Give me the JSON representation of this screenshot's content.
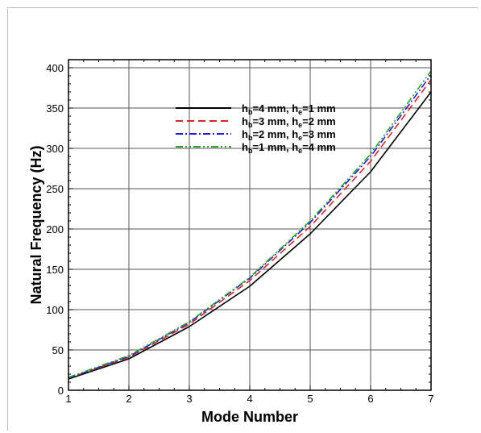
{
  "chart_data": {
    "type": "line",
    "xlabel": "Mode Number",
    "ylabel": "Natural Frequency (Hz)",
    "xlim": [
      1,
      7
    ],
    "ylim": [
      0,
      410
    ],
    "xticks": [
      1,
      2,
      3,
      4,
      5,
      6,
      7
    ],
    "yticks": [
      0,
      50,
      100,
      150,
      200,
      250,
      300,
      350,
      400
    ],
    "grid": true,
    "legend_position": "top-center",
    "x": [
      1,
      2,
      3,
      4,
      5,
      6,
      7
    ],
    "series": [
      {
        "name_parts": [
          [
            "h",
            "b",
            "=4 mm, h",
            "e",
            "=1 mm"
          ]
        ],
        "values": [
          14,
          39,
          79,
          129,
          194,
          271,
          370
        ],
        "color": "#000000",
        "dash": "solid"
      },
      {
        "name_parts": [
          [
            "h",
            "b",
            "=3 mm, h",
            "e",
            "=2 mm"
          ]
        ],
        "values": [
          15,
          41,
          82,
          136,
          203,
          284,
          385
        ],
        "color": "#d62728",
        "dash": "dashed"
      },
      {
        "name_parts": [
          [
            "h",
            "b",
            "=2 mm, h",
            "e",
            "=3 mm"
          ]
        ],
        "values": [
          15,
          42,
          84,
          139,
          208,
          290,
          391
        ],
        "color": "#1f1fcf",
        "dash": "dash-dot"
      },
      {
        "name_parts": [
          [
            "h",
            "b",
            "=1 mm, h",
            "e",
            "=4 mm"
          ]
        ],
        "values": [
          16,
          43,
          85,
          140,
          210,
          293,
          396
        ],
        "color": "#2ca02c",
        "dash": "dash-dot-dot"
      }
    ]
  }
}
